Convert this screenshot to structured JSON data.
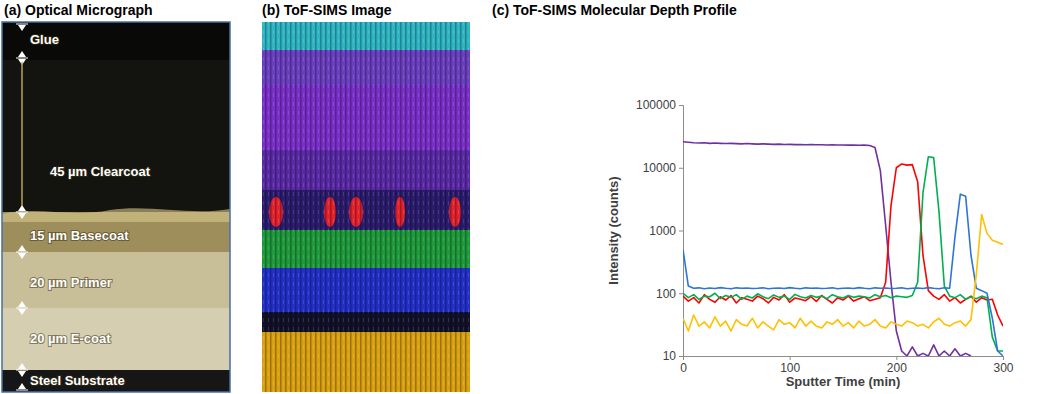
{
  "micrograph": {
    "title": "(a) Optical Micrograph",
    "layers": [
      "Glue",
      "45 µm Clearcoat",
      "15 µm Basecoat",
      "20 µm Primer",
      "20 µm E-coat",
      "Steel Substrate"
    ]
  },
  "sims_image": {
    "title": "(b) ToF-SIMS Image"
  },
  "chart_data": {
    "type": "line",
    "title": "(c) ToF-SIMS Molecular Depth Profile",
    "x_label": "Sputter Time (min)",
    "y_label": "Intensity (counts)",
    "log": "y",
    "grid": false,
    "xlim": [
      0,
      300
    ],
    "xticks": [
      0,
      100,
      200,
      300
    ],
    "ylim": [
      10,
      100000
    ],
    "yticks": [
      10,
      100,
      1000,
      10000,
      100000
    ],
    "x": [
      0,
      5,
      10,
      15,
      20,
      25,
      30,
      35,
      40,
      45,
      50,
      55,
      60,
      65,
      70,
      75,
      80,
      85,
      90,
      95,
      100,
      105,
      110,
      115,
      120,
      125,
      130,
      135,
      140,
      145,
      150,
      155,
      160,
      165,
      170,
      175,
      180,
      185,
      190,
      195,
      200,
      205,
      210,
      215,
      220,
      225,
      230,
      235,
      240,
      245,
      250,
      255,
      260,
      265,
      270,
      275,
      280,
      285,
      290,
      295,
      300
    ],
    "series": [
      {
        "color": "#7030a0",
        "values": [
          26000,
          25500,
          25000,
          24800,
          25000,
          24500,
          24800,
          24500,
          24300,
          24500,
          24200,
          24000,
          24300,
          24000,
          23800,
          24000,
          23800,
          23600,
          23800,
          23500,
          23600,
          23400,
          23500,
          23300,
          23400,
          23200,
          23300,
          23100,
          23200,
          23000,
          23100,
          22900,
          23000,
          22800,
          22900,
          22600,
          21000,
          9000,
          1200,
          150,
          25,
          12,
          10,
          14,
          10,
          11,
          10,
          15,
          10,
          12,
          10,
          13,
          10,
          11,
          10,
          null,
          null,
          null,
          null,
          null,
          null
        ]
      },
      {
        "color": "#ff0000",
        "values": [
          90,
          75,
          85,
          70,
          95,
          80,
          72,
          88,
          78,
          92,
          70,
          85,
          80,
          75,
          90,
          82,
          70,
          86,
          78,
          95,
          72,
          84,
          80,
          76,
          88,
          74,
          92,
          80,
          70,
          85,
          78,
          90,
          75,
          82,
          88,
          76,
          80,
          85,
          150,
          2500,
          10000,
          11500,
          11000,
          11200,
          6000,
          400,
          110,
          90,
          80,
          95,
          75,
          85,
          70,
          80,
          90,
          72,
          85,
          78,
          80,
          45,
          30
        ]
      },
      {
        "color": "#00b050",
        "values": [
          100,
          85,
          95,
          80,
          90,
          88,
          100,
          82,
          92,
          86,
          95,
          80,
          90,
          84,
          98,
          88,
          82,
          94,
          86,
          90,
          80,
          96,
          88,
          84,
          92,
          86,
          90,
          82,
          95,
          88,
          84,
          92,
          86,
          90,
          88,
          84,
          95,
          88,
          92,
          85,
          90,
          88,
          86,
          92,
          150,
          4000,
          15000,
          14500,
          2000,
          130,
          90,
          85,
          95,
          80,
          88,
          82,
          90,
          85,
          20,
          12,
          12
        ]
      },
      {
        "color": "#2e75d6",
        "values": [
          500,
          130,
          120,
          122,
          118,
          121,
          119,
          123,
          120,
          118,
          122,
          120,
          121,
          119,
          120,
          122,
          118,
          120,
          121,
          119,
          123,
          120,
          118,
          122,
          120,
          121,
          119,
          120,
          122,
          118,
          120,
          121,
          119,
          123,
          120,
          118,
          122,
          120,
          121,
          119,
          120,
          122,
          118,
          120,
          121,
          119,
          123,
          120,
          118,
          122,
          120,
          800,
          3800,
          3500,
          400,
          120,
          110,
          100,
          40,
          12,
          10
        ]
      },
      {
        "color": "#ffc000",
        "values": [
          40,
          25,
          45,
          30,
          35,
          28,
          42,
          30,
          36,
          25,
          38,
          32,
          30,
          40,
          28,
          35,
          30,
          26,
          38,
          32,
          34,
          28,
          40,
          30,
          36,
          30,
          28,
          35,
          32,
          38,
          30,
          34,
          28,
          36,
          30,
          32,
          38,
          30,
          28,
          35,
          32,
          30,
          36,
          34,
          30,
          32,
          28,
          35,
          40,
          32,
          30,
          34,
          36,
          30,
          38,
          200,
          1800,
          900,
          700,
          650,
          600
        ]
      }
    ]
  }
}
